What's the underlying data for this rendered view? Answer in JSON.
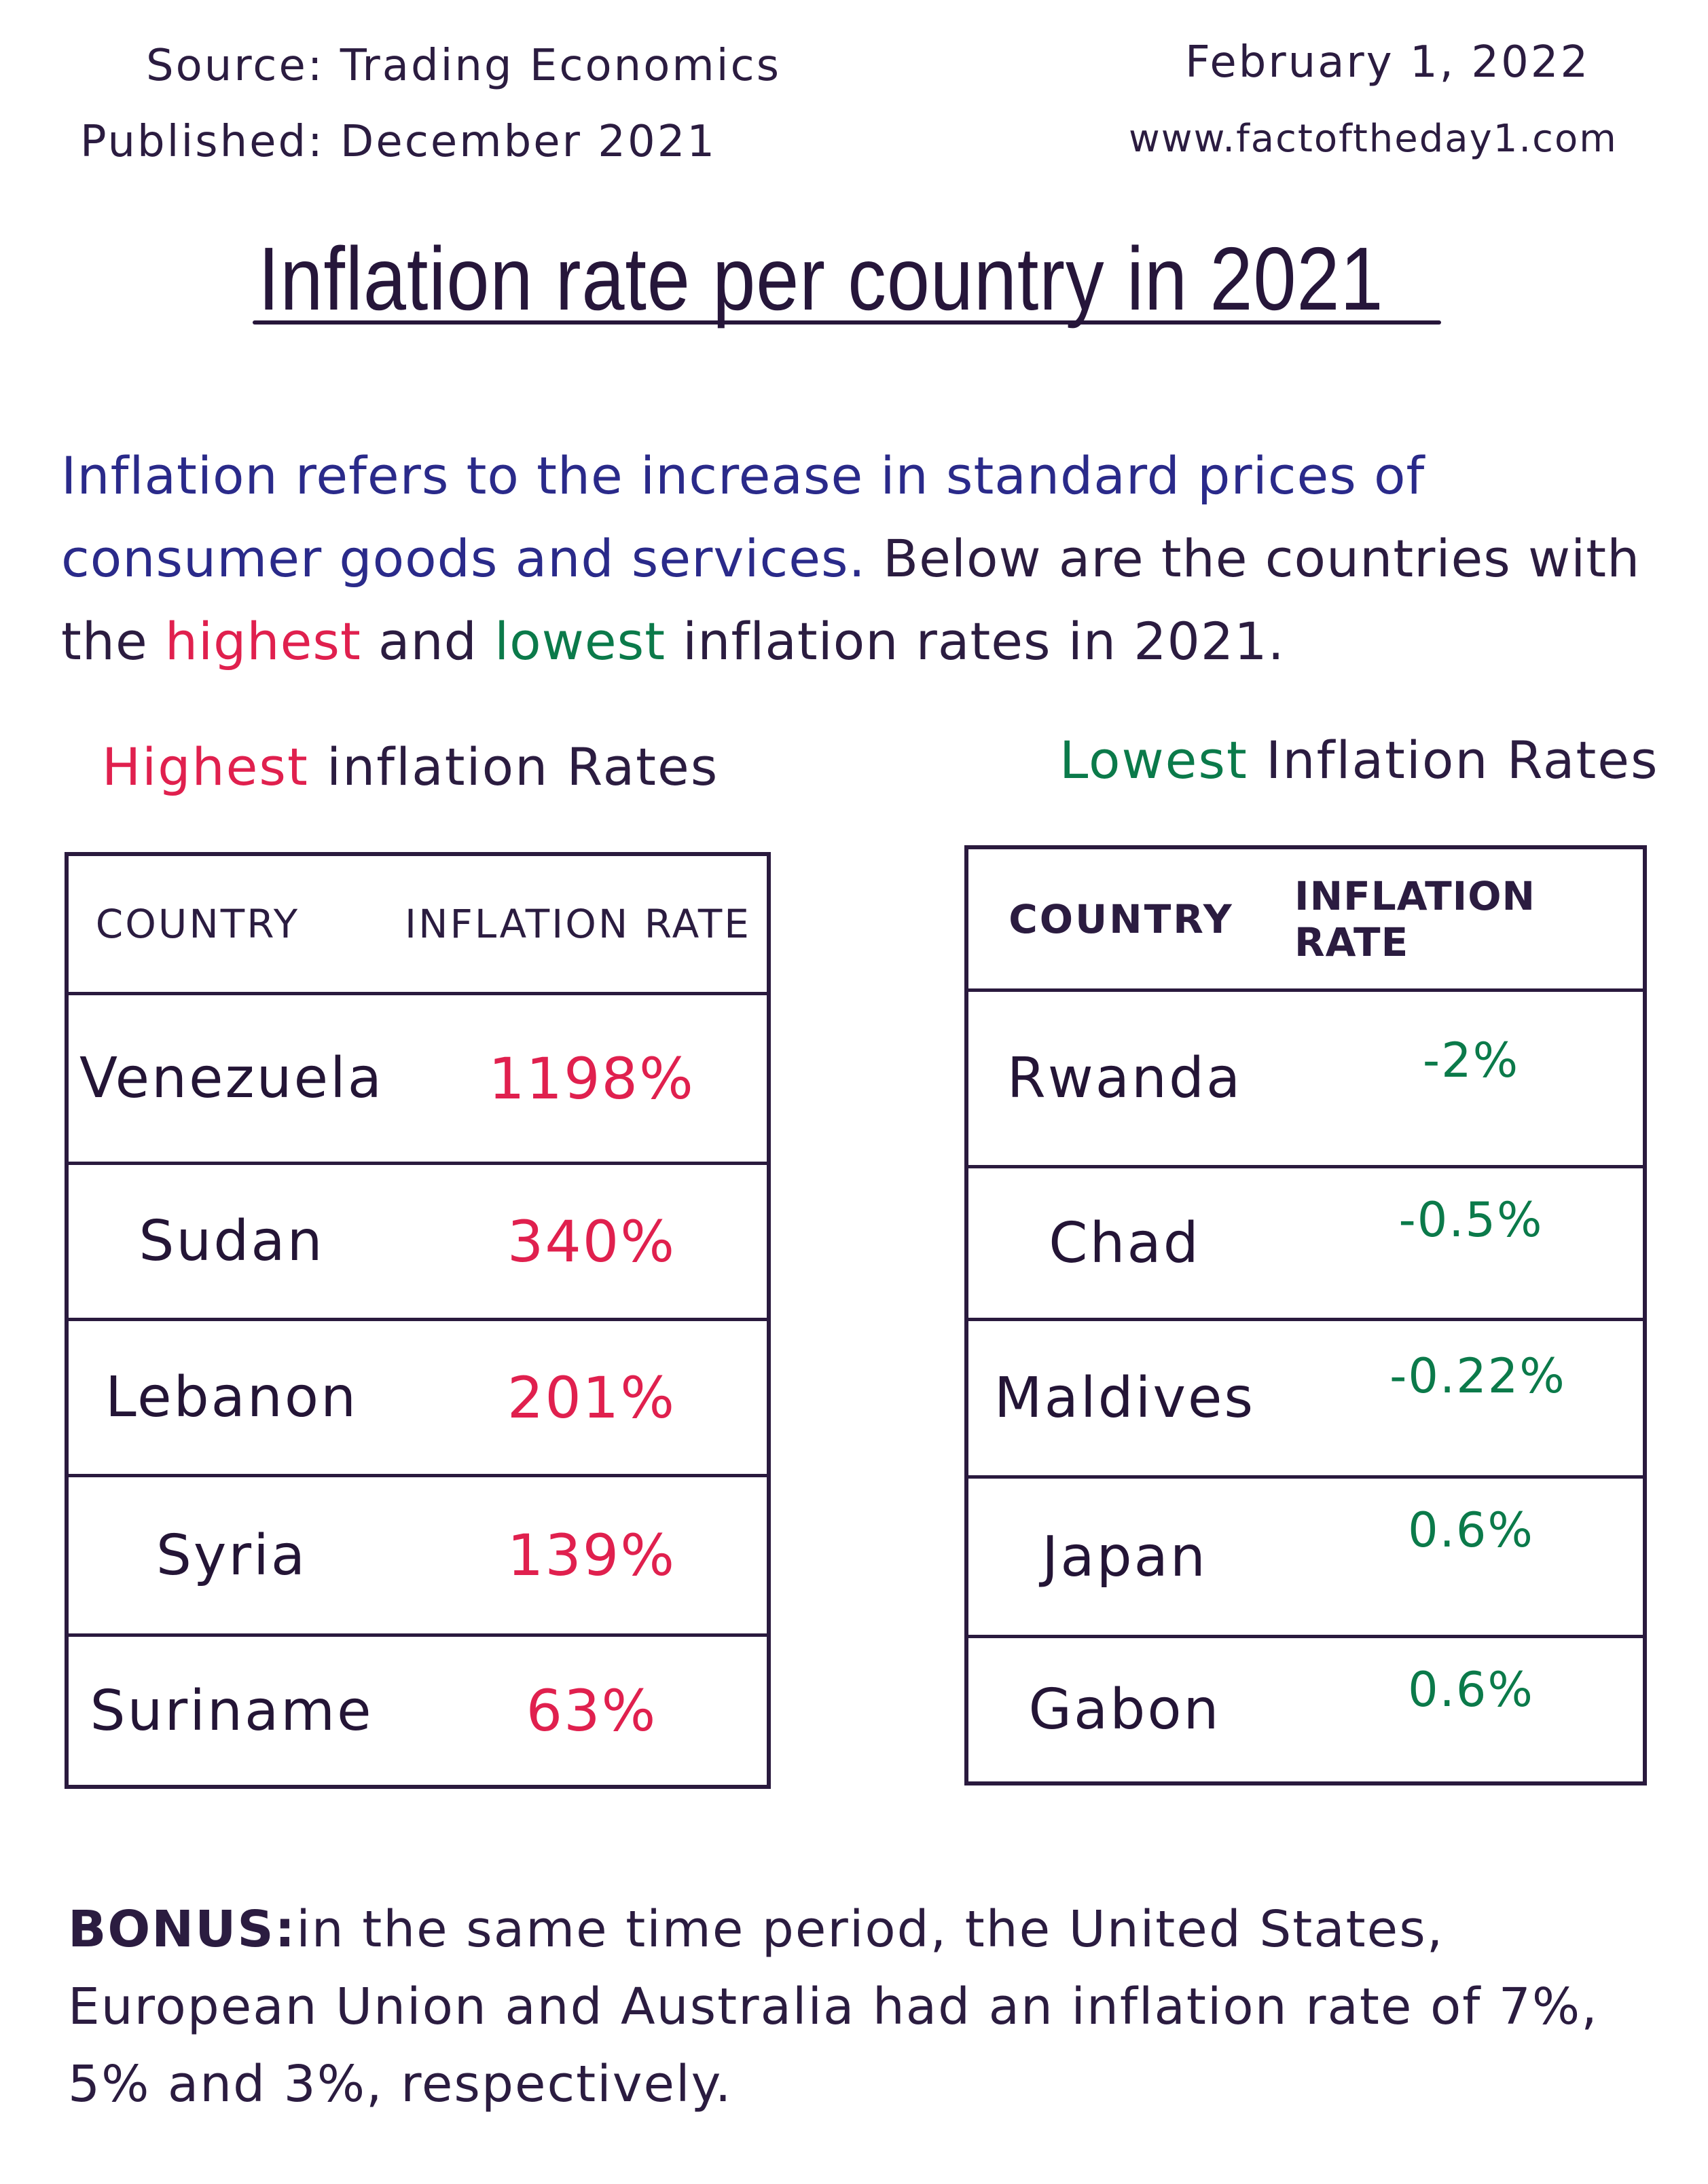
{
  "header": {
    "source": "Source: Trading Economics",
    "published": "Published: December 2021",
    "date": "February  1, 2022",
    "website": "www.factoftheday1.com"
  },
  "title": "Inflation rate per country in 2021",
  "intro": {
    "part1": "Inflation refers to the increase in standard prices of consumer goods and services.",
    "part2": " Below are the countries with the ",
    "highest": "highest",
    "part3": " and ",
    "lowest": "lowest",
    "part4": " inflation rates in 2021."
  },
  "highest_table": {
    "heading_colored": "Highest",
    "heading_rest": " inflation Rates",
    "col_country": "COUNTRY",
    "col_rate": "INFLATION RATE",
    "rows": [
      {
        "country": "Venezuela",
        "rate": "1198%"
      },
      {
        "country": "Sudan",
        "rate": "340%"
      },
      {
        "country": "Lebanon",
        "rate": "201%"
      },
      {
        "country": "Syria",
        "rate": "139%"
      },
      {
        "country": "Suriname",
        "rate": "63%"
      }
    ]
  },
  "lowest_table": {
    "heading_colored": "Lowest",
    "heading_rest": " Inflation Rates",
    "col_country": "COUNTRY",
    "col_rate": "INFLATION RATE",
    "rows": [
      {
        "country": "Rwanda",
        "rate": "-2%"
      },
      {
        "country": "Chad",
        "rate": "-0.5%"
      },
      {
        "country": "Maldives",
        "rate": "-0.22%"
      },
      {
        "country": "Japan",
        "rate": "0.6%"
      },
      {
        "country": "Gabon",
        "rate": "0.6%"
      }
    ]
  },
  "bonus": {
    "label": "BONUS:",
    "text": "in the same time period, the United States, European Union and Australia had an inflation rate of 7%, 5% and 3%, respectively."
  },
  "colors": {
    "ink": "#2a1a3e",
    "blue_ink": "#2a2a8a",
    "highest": "#e0204e",
    "lowest": "#0b7a4a"
  }
}
